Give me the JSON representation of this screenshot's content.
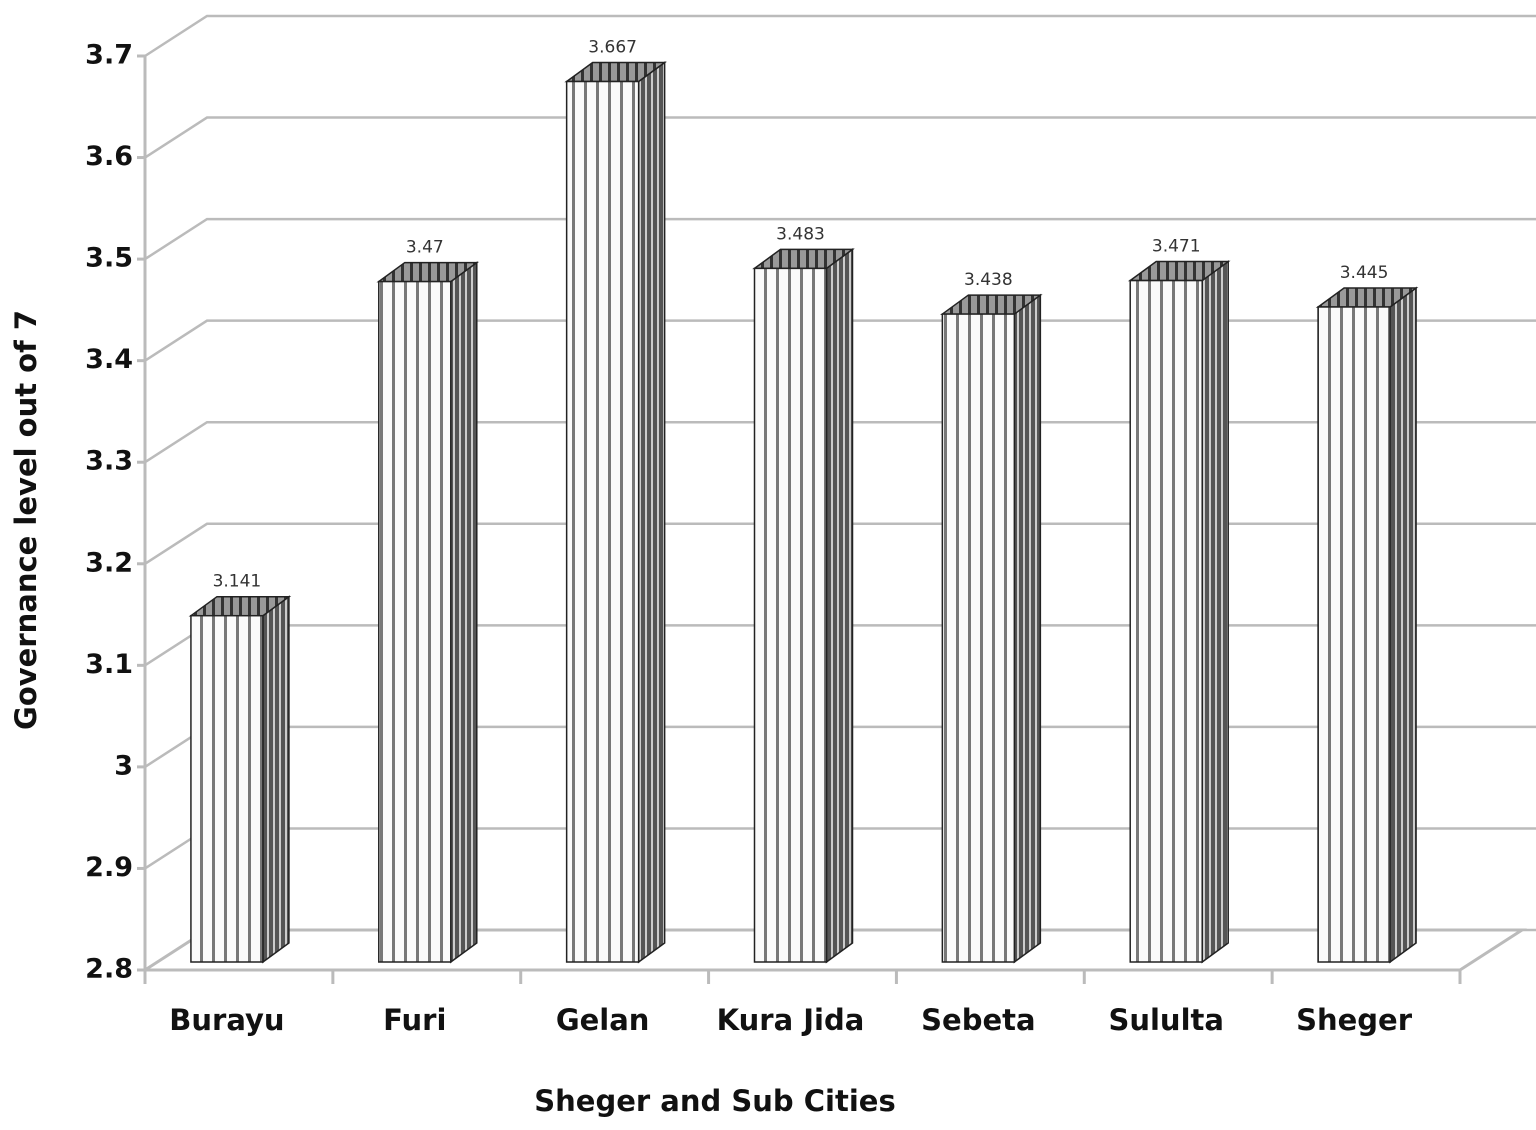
{
  "chart_data": {
    "type": "bar",
    "x_label": "Sheger and Sub Cities",
    "y_label": "Governance level out of 7",
    "categories": [
      "Burayu",
      "Furi",
      "Gelan",
      "Kura Jida",
      "Sebeta",
      "Sululta",
      "Sheger"
    ],
    "values": [
      3.141,
      3.47,
      3.667,
      3.483,
      3.438,
      3.471,
      3.445
    ],
    "ylim": [
      2.8,
      3.7
    ],
    "yticks": [
      2.8,
      2.9,
      3,
      3.1,
      3.2,
      3.3,
      3.4,
      3.5,
      3.6,
      3.7
    ],
    "grid": true
  }
}
